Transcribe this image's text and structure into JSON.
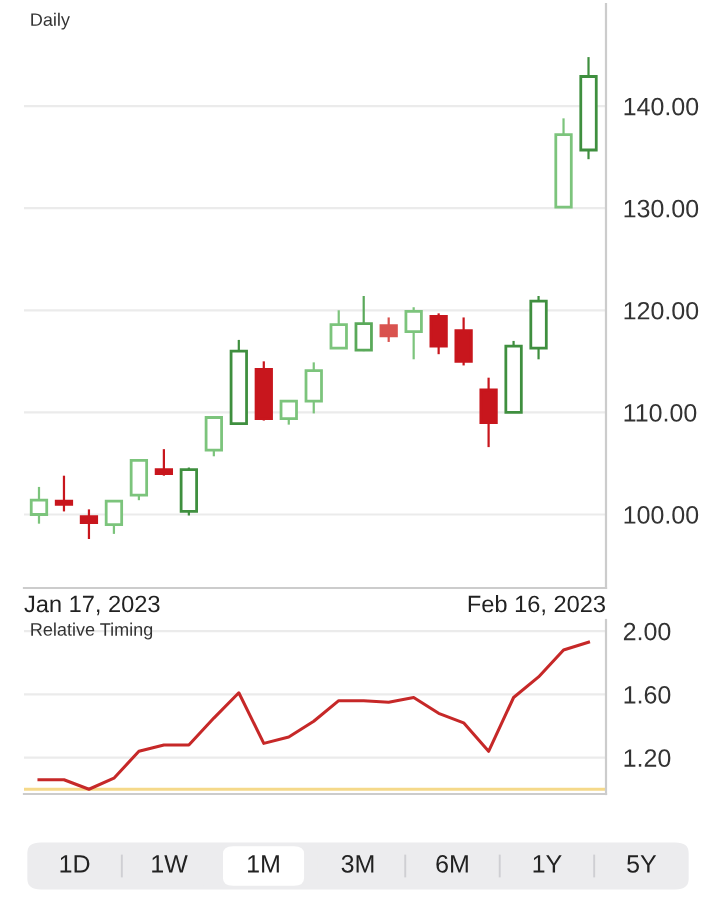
{
  "chart_data": [
    {
      "type": "candlestick",
      "title": "Daily",
      "categories": [
        null,
        null,
        null,
        null,
        null,
        null,
        null,
        null,
        null,
        null,
        null,
        null,
        null,
        null,
        null,
        null,
        null,
        null,
        null,
        null,
        null,
        null,
        null
      ],
      "annotations": [
        "Jan 17, 2023",
        "Feb 16, 2023"
      ],
      "ohlc": [
        [
          100.0,
          102.7,
          99.1,
          101.4
        ],
        [
          101.3,
          103.8,
          100.3,
          101.0
        ],
        [
          99.8,
          100.5,
          97.6,
          99.2
        ],
        [
          99.0,
          101.3,
          98.1,
          101.3
        ],
        [
          101.9,
          105.3,
          101.4,
          105.3
        ],
        [
          104.4,
          106.4,
          103.8,
          104.0
        ],
        [
          100.3,
          104.6,
          99.9,
          104.4
        ],
        [
          106.3,
          109.5,
          105.7,
          109.5
        ],
        [
          108.9,
          117.1,
          108.8,
          116.0
        ],
        [
          114.2,
          115.0,
          109.2,
          109.4
        ],
        [
          109.4,
          111.1,
          108.8,
          111.1
        ],
        [
          111.1,
          114.9,
          109.9,
          114.1
        ],
        [
          116.3,
          120.0,
          116.3,
          118.6
        ],
        [
          116.1,
          121.4,
          116.0,
          118.7
        ],
        [
          118.5,
          119.3,
          116.9,
          117.5
        ],
        [
          117.9,
          120.3,
          115.2,
          119.9
        ],
        [
          119.4,
          119.7,
          115.7,
          116.5
        ],
        [
          118.0,
          119.3,
          114.6,
          115.0
        ],
        [
          112.2,
          113.4,
          106.6,
          109.0
        ],
        [
          110.0,
          117.0,
          110.0,
          116.5
        ],
        [
          116.3,
          121.4,
          115.2,
          120.9
        ],
        [
          130.1,
          138.8,
          130.1,
          137.2
        ],
        [
          135.7,
          144.8,
          134.8,
          142.9
        ]
      ],
      "colors": [
        "#7cc47c",
        "#c8161d",
        "#c8161d",
        "#7cc47c",
        "#7cc47c",
        "#c8161d",
        "#3f8f3f",
        "#7cc47c",
        "#3f8f3f",
        "#c8161d",
        "#7cc47c",
        "#7cc47c",
        "#7cc47c",
        "#5aa95a",
        "#d9534f",
        "#7cc47c",
        "#c8161d",
        "#c8161d",
        "#c8161d",
        "#3f8f3f",
        "#3f8f3f",
        "#7cc47c",
        "#3f8f3f"
      ],
      "ylim": [
        92.8,
        150
      ],
      "yticks": [
        {
          "value": 100,
          "label": "100.00"
        },
        {
          "value": 110,
          "label": "110.00"
        },
        {
          "value": 120,
          "label": "120.00"
        },
        {
          "value": 130,
          "label": "130.00"
        },
        {
          "value": 140,
          "label": "140.00"
        }
      ],
      "grid": "y"
    },
    {
      "type": "line",
      "title": "Relative Timing",
      "categories": [
        null,
        null,
        null,
        null,
        null,
        null,
        null,
        null,
        null,
        null,
        null,
        null,
        null,
        null,
        null,
        null,
        null,
        null,
        null,
        null,
        null,
        null,
        null
      ],
      "series": [
        {
          "color": "#c62828",
          "values": [
            1.06,
            1.06,
            1.0,
            1.07,
            1.24,
            1.28,
            1.28,
            1.45,
            1.61,
            1.29,
            1.33,
            1.43,
            1.56,
            1.56,
            1.55,
            1.58,
            1.48,
            1.42,
            1.24,
            1.58,
            1.71,
            1.88,
            1.93
          ]
        }
      ],
      "ylim": [
        0.97,
        2.07
      ],
      "yticks": [
        {
          "value": 1.2,
          "label": "1.20"
        },
        {
          "value": 1.6,
          "label": "1.60"
        },
        {
          "value": 2.0,
          "label": "2.00"
        }
      ],
      "ref_lines": [
        {
          "axis": "y",
          "value": 1.0,
          "color": "#f5d98a"
        }
      ],
      "tick_labels": "y",
      "grid": "y"
    },
    {
      "type": "other",
      "categories": [
        "1D",
        "1W",
        "1M",
        "3M",
        "6M",
        "1Y",
        "5Y"
      ],
      "colors": [
        "#ececee",
        "#ececee",
        "#ffffff",
        "#ececee",
        "#ececee",
        "#ececee",
        "#ececee"
      ]
    }
  ]
}
